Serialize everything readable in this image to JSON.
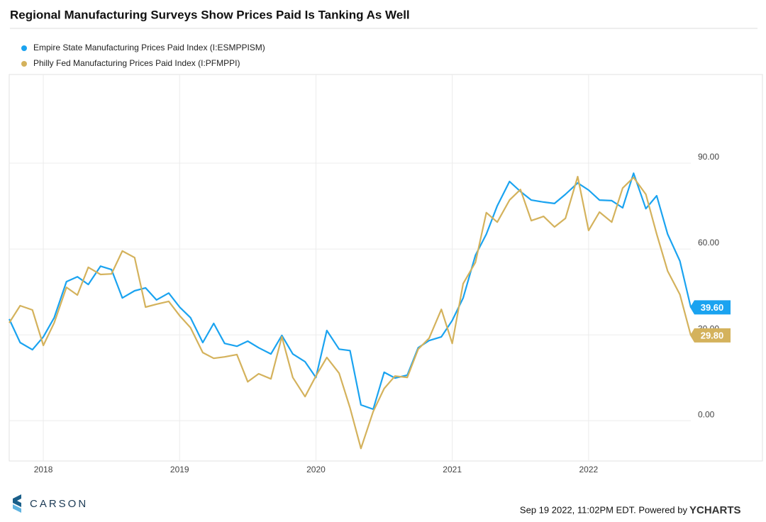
{
  "chart_data": {
    "type": "line",
    "title": "Regional Manufacturing Surveys Show Prices Paid Is Tanking As Well",
    "x": [
      2017.75,
      2017.83,
      2017.92,
      2018,
      2018.08,
      2018.17,
      2018.25,
      2018.33,
      2018.42,
      2018.5,
      2018.58,
      2018.67,
      2018.75,
      2018.83,
      2018.92,
      2019,
      2019.08,
      2019.17,
      2019.25,
      2019.33,
      2019.42,
      2019.5,
      2019.58,
      2019.67,
      2019.75,
      2019.83,
      2019.92,
      2020,
      2020.08,
      2020.17,
      2020.25,
      2020.33,
      2020.42,
      2020.5,
      2020.58,
      2020.67,
      2020.75,
      2020.83,
      2020.92,
      2021,
      2021.08,
      2021.17,
      2021.25,
      2021.33,
      2021.42,
      2021.5,
      2021.58,
      2021.67,
      2021.75,
      2021.83,
      2021.92,
      2022,
      2022.08,
      2022.17,
      2022.25,
      2022.33,
      2022.42,
      2022.5,
      2022.58,
      2022.67,
      2022.75
    ],
    "series": [
      {
        "name": "Empire State Manufacturing Prices Paid Index (I:ESMPPISM)",
        "color": "#1aa3f0",
        "values": [
          35.5,
          27.3,
          24.8,
          29.3,
          36,
          48.6,
          50.3,
          47.6,
          54,
          52.8,
          42.9,
          45.4,
          46.4,
          42.2,
          44.6,
          39.7,
          36,
          27.3,
          34,
          27,
          26,
          27.8,
          25.5,
          23.3,
          29.8,
          23.3,
          20.6,
          15.1,
          31.5,
          25,
          24.5,
          5.5,
          4,
          16.9,
          14.9,
          15.9,
          25.5,
          28,
          29.3,
          35,
          42.9,
          57.8,
          65.2,
          75.1,
          83.6,
          80.1,
          77.1,
          76.4,
          75.9,
          79.1,
          83.1,
          80.6,
          77.1,
          76.9,
          74.4,
          86.5,
          74.1,
          78.6,
          65.2,
          55.8,
          39.6
        ],
        "value_labels": [
          null,
          null,
          null,
          null,
          null,
          null,
          null,
          null,
          null,
          null,
          null,
          null,
          null,
          null,
          null,
          null,
          null,
          null,
          null,
          null,
          null,
          null,
          null,
          null,
          null,
          null,
          null,
          null,
          null,
          null,
          null,
          null,
          null,
          null,
          null,
          null,
          null,
          null,
          null,
          null,
          null,
          null,
          null,
          null,
          null,
          null,
          null,
          null,
          null,
          null,
          null,
          null,
          null,
          null,
          null,
          null,
          null,
          null,
          null,
          null,
          "39.60"
        ]
      },
      {
        "name": "Philly Fed Manufacturing Prices Paid Index (I:PFMPPI)",
        "color": "#d4b25c",
        "values": [
          34.2,
          40.2,
          38.7,
          26.3,
          34.2,
          46.6,
          43.9,
          53.6,
          51.1,
          51.3,
          59.3,
          57,
          39.7,
          40.7,
          41.7,
          36.7,
          32.5,
          23.8,
          21.8,
          22.3,
          23.1,
          13.6,
          16.4,
          14.6,
          29.3,
          15.1,
          8.4,
          15.6,
          22.1,
          16.6,
          4.5,
          -9.7,
          3.2,
          11.2,
          15.6,
          15.1,
          25,
          28.8,
          38.9,
          27,
          47.9,
          55.3,
          72.7,
          69.4,
          77.1,
          80.8,
          69.9,
          71.4,
          67.7,
          70.7,
          85.3,
          66.5,
          72.9,
          69.4,
          81.3,
          85,
          79.1,
          65.2,
          52.3,
          44.1,
          29.8
        ],
        "value_labels": [
          null,
          null,
          null,
          null,
          null,
          null,
          null,
          null,
          null,
          null,
          null,
          null,
          null,
          null,
          null,
          null,
          null,
          null,
          null,
          null,
          null,
          null,
          null,
          null,
          null,
          null,
          null,
          null,
          null,
          null,
          null,
          null,
          null,
          null,
          null,
          null,
          null,
          null,
          null,
          null,
          null,
          null,
          null,
          null,
          null,
          null,
          null,
          null,
          null,
          null,
          null,
          null,
          null,
          null,
          null,
          null,
          null,
          null,
          null,
          null,
          "29.80"
        ]
      }
    ],
    "xlim": [
      2017.75,
      2022.75
    ],
    "xticks": [
      2018,
      2019,
      2020,
      2021,
      2022
    ],
    "ylim": [
      -14.1,
      121
    ],
    "yticks": [
      {
        "value": 0,
        "label": "0.00"
      },
      {
        "value": 30,
        "label": "30.00"
      },
      {
        "value": 60,
        "label": "60.00"
      },
      {
        "value": 90,
        "label": "90.00"
      }
    ],
    "grid": true,
    "legend": "top-left"
  },
  "branding": "CARSON",
  "footer": {
    "timestamp": "Sep 19 2022, 11:02PM EDT. Powered by",
    "brand": "YCHARTS"
  }
}
